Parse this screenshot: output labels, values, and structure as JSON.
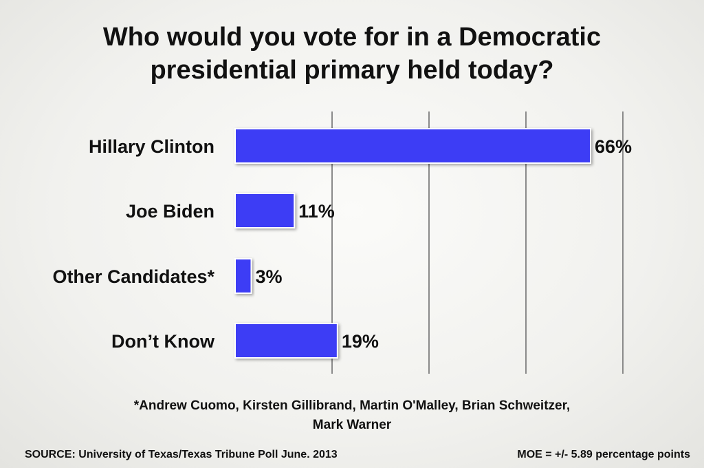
{
  "chart_data": {
    "type": "bar",
    "orientation": "horizontal",
    "title_lines": [
      "Who would you vote for in a Democratic",
      "presidential primary held today?"
    ],
    "categories": [
      "Hillary Clinton",
      "Joe Biden",
      "Other Candidates*",
      "Don’t Know"
    ],
    "values": [
      66,
      11,
      3,
      19
    ],
    "value_labels": [
      "66%",
      "11%",
      "3%",
      "19%"
    ],
    "xlim": [
      0,
      72
    ],
    "gridlines": [
      18,
      36,
      54,
      72
    ],
    "grid": true,
    "bar_color": "#3d3df5",
    "bar_border_color": "#ffffff"
  },
  "footnote_lines": [
    "*Andrew Cuomo, Kirsten Gillibrand, Martin O'Malley, Brian Schweitzer,",
    "Mark Warner"
  ],
  "source": "SOURCE: University of Texas/Texas Tribune Poll June. 2013",
  "moe": "MOE = +/- 5.89 percentage points"
}
